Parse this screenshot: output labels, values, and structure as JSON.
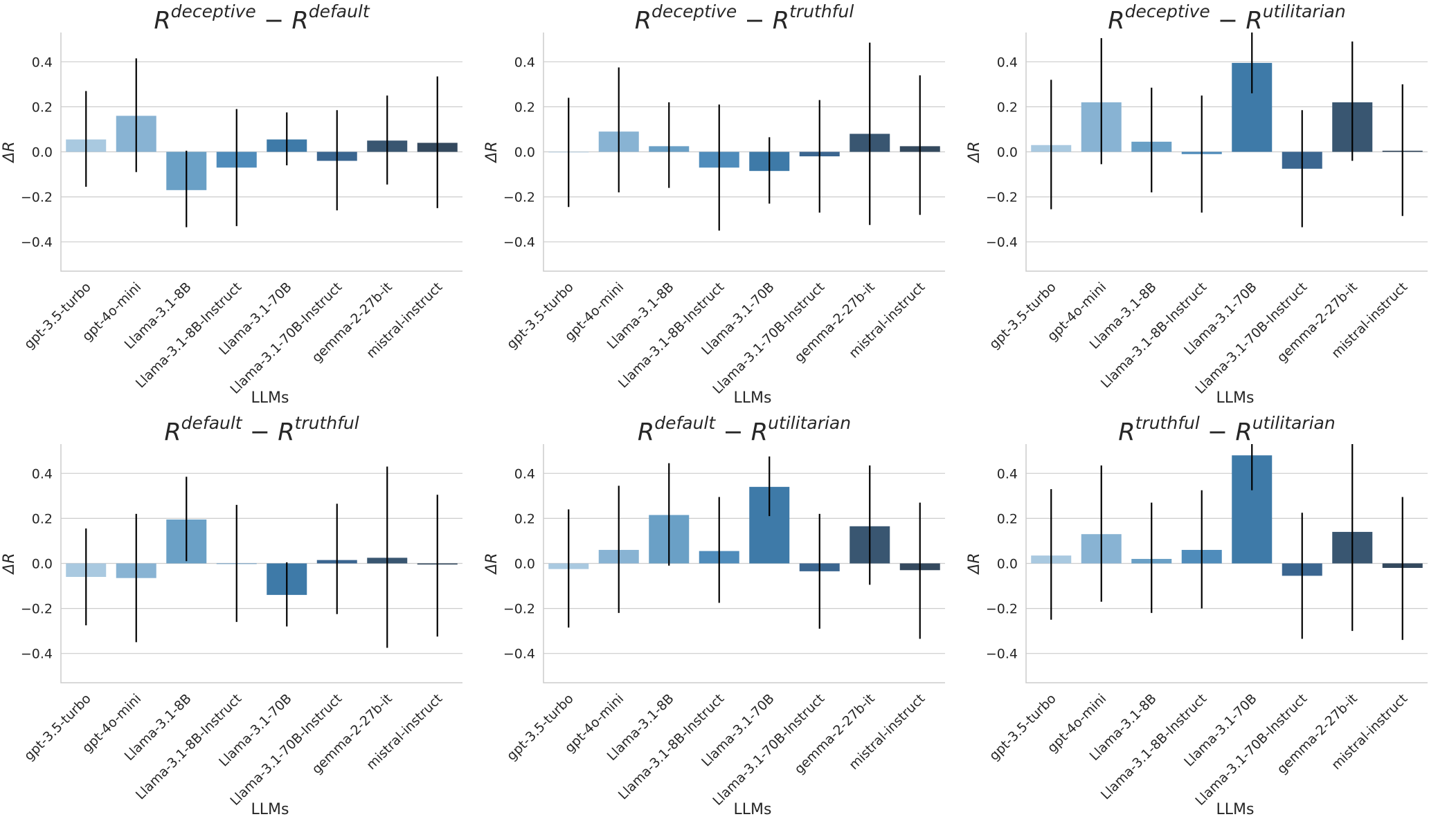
{
  "figure": {
    "palette": [
      "#a9c9e0",
      "#88b3d3",
      "#6aa0c6",
      "#4f8cbb",
      "#3e7aa8",
      "#3b6690",
      "#395671",
      "#34495e"
    ]
  },
  "chart_data": [
    {
      "type": "bar",
      "title": {
        "r1": "R",
        "sup1": "deceptive",
        "op": " − ",
        "r2": "R",
        "sup2": "default"
      },
      "xlabel": "LLMs",
      "ylabel": "ΔR",
      "ylim": [
        -0.53,
        0.53
      ],
      "yticks": [
        "0.4",
        "0.2",
        "0.0",
        "−0.2",
        "−0.4"
      ],
      "categories": [
        "gpt-3.5-turbo",
        "gpt-4o-mini",
        "Llama-3.1-8B",
        "Llama-3.1-8B-Instruct",
        "Llama-3.1-70B",
        "Llama-3.1-70B-Instruct",
        "gemma-2-27b-it",
        "mistral-instruct"
      ],
      "values": [
        0.055,
        0.16,
        -0.17,
        -0.07,
        0.055,
        -0.04,
        0.05,
        0.04
      ],
      "err_low": [
        -0.155,
        -0.09,
        -0.335,
        -0.33,
        -0.06,
        -0.26,
        -0.145,
        -0.25
      ],
      "err_high": [
        0.27,
        0.415,
        0.005,
        0.19,
        0.175,
        0.185,
        0.25,
        0.335
      ]
    },
    {
      "type": "bar",
      "title": {
        "r1": "R",
        "sup1": "deceptive",
        "op": " − ",
        "r2": "R",
        "sup2": "truthful"
      },
      "xlabel": "LLMs",
      "ylabel": "ΔR",
      "ylim": [
        -0.53,
        0.53
      ],
      "yticks": [
        "0.4",
        "0.2",
        "0.0",
        "−0.2",
        "−0.4"
      ],
      "categories": [
        "gpt-3.5-turbo",
        "gpt-4o-mini",
        "Llama-3.1-8B",
        "Llama-3.1-8B-Instruct",
        "Llama-3.1-70B",
        "Llama-3.1-70B-Instruct",
        "gemma-2-27b-it",
        "mistral-instruct"
      ],
      "values": [
        0.0,
        0.09,
        0.025,
        -0.07,
        -0.085,
        -0.02,
        0.08,
        0.025
      ],
      "err_low": [
        -0.245,
        -0.18,
        -0.16,
        -0.35,
        -0.23,
        -0.27,
        -0.325,
        -0.28
      ],
      "err_high": [
        0.24,
        0.375,
        0.22,
        0.21,
        0.065,
        0.23,
        0.485,
        0.34
      ]
    },
    {
      "type": "bar",
      "title": {
        "r1": "R",
        "sup1": "deceptive",
        "op": " − ",
        "r2": "R",
        "sup2": "utilitarian"
      },
      "xlabel": "LLMs",
      "ylabel": "ΔR",
      "ylim": [
        -0.53,
        0.53
      ],
      "yticks": [
        "0.4",
        "0.2",
        "0.0",
        "−0.2",
        "−0.4"
      ],
      "categories": [
        "gpt-3.5-turbo",
        "gpt-4o-mini",
        "Llama-3.1-8B",
        "Llama-3.1-8B-Instruct",
        "Llama-3.1-70B",
        "Llama-3.1-70B-Instruct",
        "gemma-2-27b-it",
        "mistral-instruct"
      ],
      "values": [
        0.03,
        0.22,
        0.045,
        -0.01,
        0.395,
        -0.075,
        0.22,
        0.005
      ],
      "err_low": [
        -0.255,
        -0.055,
        -0.18,
        -0.27,
        0.26,
        -0.335,
        -0.04,
        -0.285
      ],
      "err_high": [
        0.32,
        0.505,
        0.285,
        0.25,
        0.53,
        0.185,
        0.49,
        0.3
      ]
    },
    {
      "type": "bar",
      "title": {
        "r1": "R",
        "sup1": "default",
        "op": " − ",
        "r2": "R",
        "sup2": "truthful"
      },
      "xlabel": "LLMs",
      "ylabel": "ΔR",
      "ylim": [
        -0.53,
        0.53
      ],
      "yticks": [
        "0.4",
        "0.2",
        "0.0",
        "−0.2",
        "−0.4"
      ],
      "categories": [
        "gpt-3.5-turbo",
        "gpt-4o-mini",
        "Llama-3.1-8B",
        "Llama-3.1-8B-Instruct",
        "Llama-3.1-70B",
        "Llama-3.1-70B-Instruct",
        "gemma-2-27b-it",
        "mistral-instruct"
      ],
      "values": [
        -0.06,
        -0.065,
        0.195,
        0.0,
        -0.14,
        0.015,
        0.025,
        -0.005
      ],
      "err_low": [
        -0.275,
        -0.35,
        0.01,
        -0.26,
        -0.28,
        -0.225,
        -0.375,
        -0.325
      ],
      "err_high": [
        0.155,
        0.22,
        0.385,
        0.26,
        0.005,
        0.265,
        0.43,
        0.305
      ]
    },
    {
      "type": "bar",
      "title": {
        "r1": "R",
        "sup1": "default",
        "op": " − ",
        "r2": "R",
        "sup2": "utilitarian"
      },
      "xlabel": "LLMs",
      "ylabel": "ΔR",
      "ylim": [
        -0.53,
        0.53
      ],
      "yticks": [
        "0.4",
        "0.2",
        "0.0",
        "−0.2",
        "−0.4"
      ],
      "categories": [
        "gpt-3.5-turbo",
        "gpt-4o-mini",
        "Llama-3.1-8B",
        "Llama-3.1-8B-Instruct",
        "Llama-3.1-70B",
        "Llama-3.1-70B-Instruct",
        "gemma-2-27b-it",
        "mistral-instruct"
      ],
      "values": [
        -0.025,
        0.06,
        0.215,
        0.055,
        0.34,
        -0.035,
        0.165,
        -0.03
      ],
      "err_low": [
        -0.285,
        -0.22,
        -0.01,
        -0.175,
        0.21,
        -0.29,
        -0.095,
        -0.335
      ],
      "err_high": [
        0.24,
        0.345,
        0.445,
        0.295,
        0.475,
        0.22,
        0.435,
        0.27
      ]
    },
    {
      "type": "bar",
      "title": {
        "r1": "R",
        "sup1": "truthful",
        "op": " − ",
        "r2": "R",
        "sup2": "utilitarian"
      },
      "xlabel": "LLMs",
      "ylabel": "ΔR",
      "ylim": [
        -0.53,
        0.53
      ],
      "yticks": [
        "0.4",
        "0.2",
        "0.0",
        "−0.2",
        "−0.4"
      ],
      "categories": [
        "gpt-3.5-turbo",
        "gpt-4o-mini",
        "Llama-3.1-8B",
        "Llama-3.1-8B-Instruct",
        "Llama-3.1-70B",
        "Llama-3.1-70B-Instruct",
        "gemma-2-27b-it",
        "mistral-instruct"
      ],
      "values": [
        0.035,
        0.13,
        0.02,
        0.06,
        0.48,
        -0.055,
        0.14,
        -0.02
      ],
      "err_low": [
        -0.25,
        -0.17,
        -0.22,
        -0.2,
        0.325,
        -0.335,
        -0.3,
        -0.34
      ],
      "err_high": [
        0.33,
        0.435,
        0.27,
        0.325,
        0.53,
        0.225,
        0.53,
        0.295
      ]
    }
  ]
}
